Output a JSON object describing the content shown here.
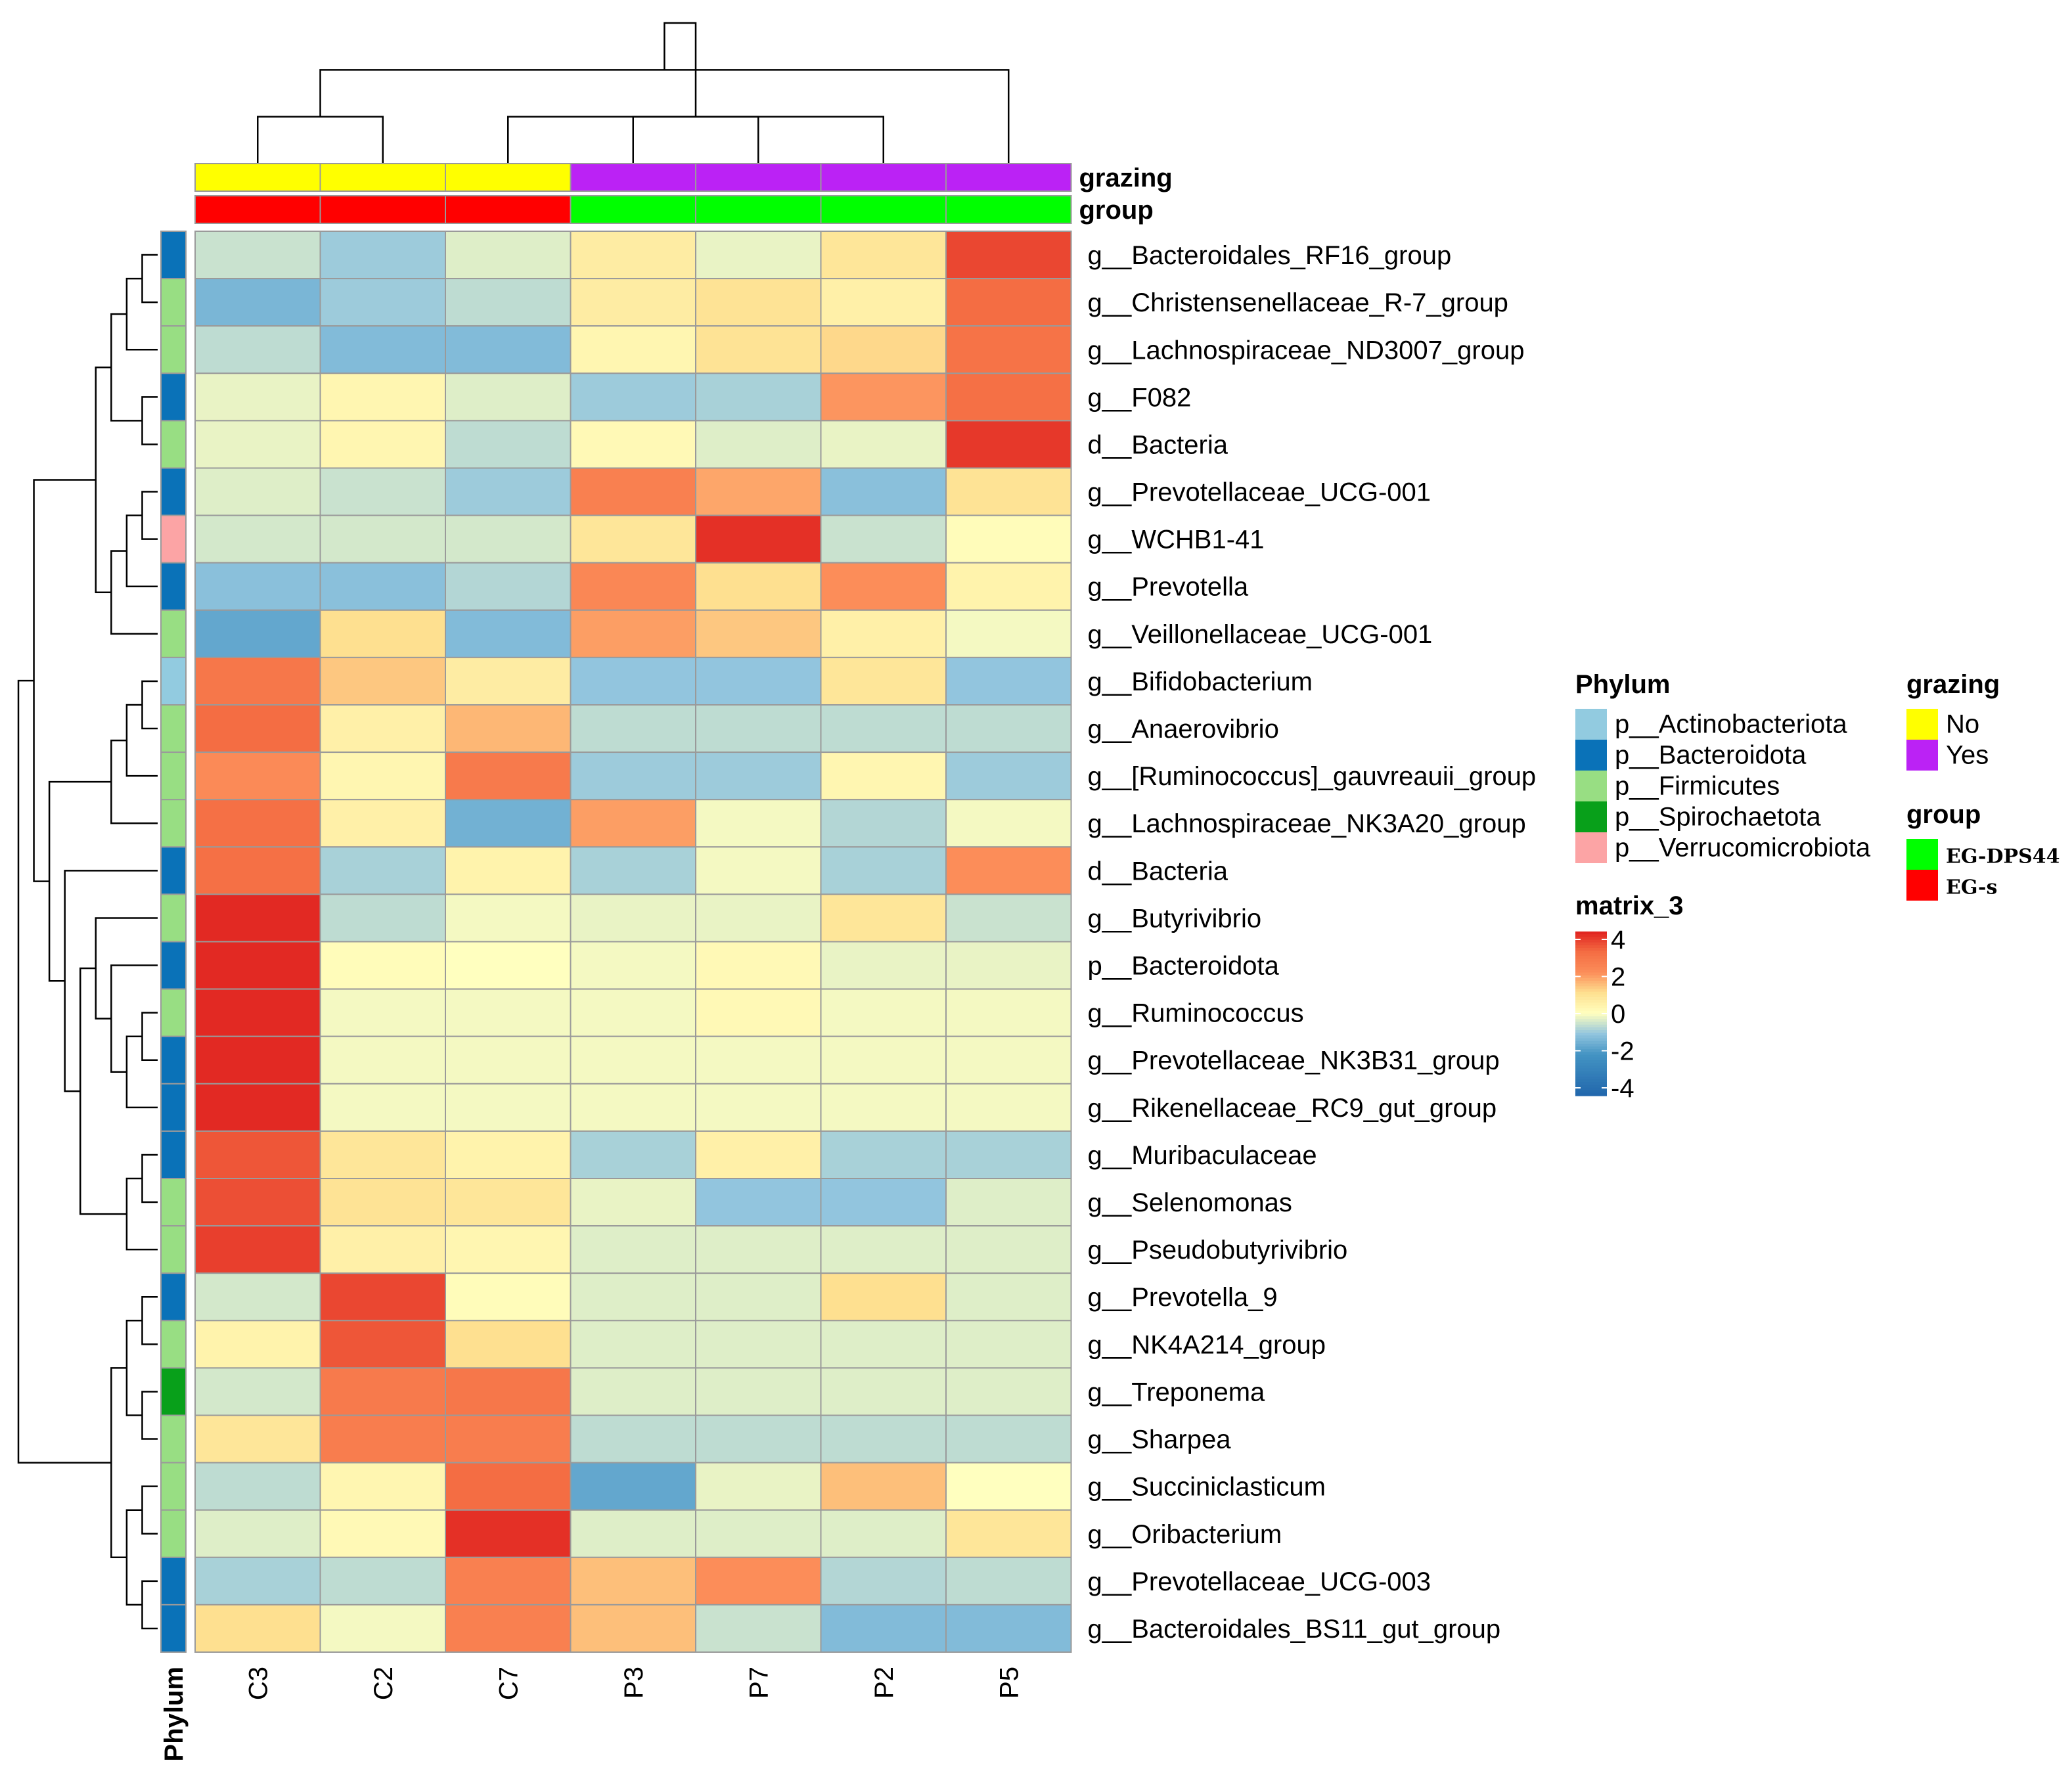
{
  "chart_data": {
    "type": "heatmap",
    "columns": [
      "C3",
      "C2",
      "C7",
      "P3",
      "P7",
      "P2",
      "P5"
    ],
    "rows": [
      "g__Bacteroidales_RF16_group",
      "g__Christensenellaceae_R-7_group",
      "g__Lachnospiraceae_ND3007_group",
      "g__F082",
      "d__Bacteria",
      "g__Prevotellaceae_UCG-001",
      "g__WCHB1-41",
      "g__Prevotella",
      "g__Veillonellaceae_UCG-001",
      "g__Bifidobacterium",
      "g__Anaerovibrio",
      "g__[Ruminococcus]_gauvreauii_group",
      "g__Lachnospiraceae_NK3A20_group",
      "d__Bacteria",
      "g__Butyrivibrio",
      "p__Bacteroidota",
      "g__Ruminococcus",
      "g__Prevotellaceae_NK3B31_group",
      "g__Rikenellaceae_RC9_gut_group",
      "g__Muribaculaceae",
      "g__Selenomonas",
      "g__Pseudobutyrivibrio",
      "g__Prevotella_9",
      "g__NK4A214_group",
      "g__Treponema",
      "g__Sharpea",
      "g__Succiniclasticum",
      "g__Oribacterium",
      "g__Prevotellaceae_UCG-003",
      "g__Bacteroidales_BS11_gut_group"
    ],
    "values": [
      [
        -0.5,
        -0.9,
        -0.3,
        0.6,
        -0.2,
        0.8,
        3.5
      ],
      [
        -1.3,
        -0.9,
        -0.6,
        0.6,
        0.9,
        0.5,
        3.0
      ],
      [
        -0.6,
        -1.2,
        -1.2,
        0.3,
        0.9,
        1.1,
        2.8
      ],
      [
        -0.2,
        0.3,
        -0.3,
        -0.9,
        -0.8,
        1.9,
        2.9
      ],
      [
        -0.2,
        0.3,
        -0.6,
        0.2,
        -0.3,
        -0.2,
        3.7
      ],
      [
        -0.3,
        -0.5,
        -0.9,
        2.4,
        1.7,
        -1.1,
        0.9
      ],
      [
        -0.4,
        -0.4,
        -0.4,
        0.8,
        3.8,
        -0.5,
        0.1
      ],
      [
        -1.1,
        -1.1,
        -0.7,
        2.2,
        1.0,
        2.0,
        0.4
      ],
      [
        -1.6,
        1.0,
        -1.2,
        1.8,
        1.3,
        0.5,
        -0.1
      ],
      [
        2.7,
        1.3,
        0.6,
        -1.0,
        -1.0,
        0.8,
        -1.0
      ],
      [
        3.0,
        0.5,
        1.5,
        -0.6,
        -0.6,
        -0.6,
        -0.6
      ],
      [
        2.1,
        0.3,
        2.6,
        -0.9,
        -0.9,
        0.3,
        -0.9
      ],
      [
        2.9,
        0.5,
        -1.4,
        1.8,
        -0.1,
        -0.7,
        -0.1
      ],
      [
        2.9,
        -0.8,
        0.4,
        -0.8,
        -0.1,
        -0.8,
        2.0
      ],
      [
        3.9,
        -0.6,
        -0.1,
        -0.2,
        -0.2,
        0.8,
        -0.5
      ],
      [
        3.9,
        0.1,
        0.0,
        -0.1,
        0.2,
        -0.2,
        -0.2
      ],
      [
        3.9,
        -0.1,
        -0.1,
        -0.1,
        0.2,
        -0.1,
        -0.1
      ],
      [
        3.9,
        -0.1,
        -0.1,
        -0.1,
        -0.1,
        -0.1,
        -0.1
      ],
      [
        3.9,
        -0.1,
        -0.1,
        -0.1,
        -0.1,
        -0.1,
        -0.1
      ],
      [
        3.3,
        0.8,
        0.4,
        -0.8,
        0.5,
        -0.8,
        -0.8
      ],
      [
        3.4,
        0.9,
        0.8,
        -0.2,
        -1.0,
        -1.0,
        -0.3
      ],
      [
        3.6,
        0.5,
        0.3,
        -0.3,
        -0.3,
        -0.3,
        -0.3
      ],
      [
        -0.4,
        3.5,
        0.1,
        -0.3,
        -0.3,
        1.0,
        -0.3
      ],
      [
        0.4,
        3.3,
        1.0,
        -0.3,
        -0.3,
        -0.3,
        -0.3
      ],
      [
        -0.4,
        2.6,
        2.7,
        -0.3,
        -0.3,
        -0.3,
        -0.3
      ],
      [
        0.8,
        2.5,
        2.5,
        -0.6,
        -0.6,
        -0.6,
        -0.6
      ],
      [
        -0.6,
        0.3,
        3.0,
        -1.6,
        -0.2,
        1.4,
        0.0
      ],
      [
        -0.3,
        0.2,
        3.8,
        -0.3,
        -0.3,
        -0.3,
        0.8
      ],
      [
        -0.8,
        -0.6,
        2.4,
        1.4,
        2.0,
        -0.7,
        -0.6
      ],
      [
        1.0,
        -0.1,
        2.4,
        1.4,
        -0.5,
        -1.2,
        -1.2
      ]
    ],
    "row_phylum": [
      "p__Bacteroidota",
      "p__Firmicutes",
      "p__Firmicutes",
      "p__Bacteroidota",
      "p__Firmicutes",
      "p__Bacteroidota",
      "p__Verrucomicrobiota",
      "p__Bacteroidota",
      "p__Firmicutes",
      "p__Actinobacteriota",
      "p__Firmicutes",
      "p__Firmicutes",
      "p__Firmicutes",
      "p__Bacteroidota",
      "p__Firmicutes",
      "p__Bacteroidota",
      "p__Firmicutes",
      "p__Bacteroidota",
      "p__Bacteroidota",
      "p__Bacteroidota",
      "p__Firmicutes",
      "p__Firmicutes",
      "p__Bacteroidota",
      "p__Firmicutes",
      "p__Spirochaetota",
      "p__Firmicutes",
      "p__Firmicutes",
      "p__Firmicutes",
      "p__Bacteroidota",
      "p__Bacteroidota"
    ],
    "col_grazing": [
      "No",
      "No",
      "No",
      "Yes",
      "Yes",
      "Yes",
      "Yes"
    ],
    "col_group": [
      "EG-s",
      "EG-s",
      "EG-s",
      "EG-DPS44",
      "EG-DPS44",
      "EG-DPS44",
      "EG-DPS44"
    ],
    "row_annotation_label": "Phylum",
    "col_annotation_labels": [
      "grazing",
      "group"
    ],
    "color_scale": {
      "title": "matrix_3",
      "ticks": [
        4,
        2,
        0,
        -2,
        -4
      ],
      "range": [
        -4,
        4
      ],
      "stops": [
        {
          "value": -4,
          "color": "#2166ac"
        },
        {
          "value": -2,
          "color": "#4393c3"
        },
        {
          "value": -1,
          "color": "#92c5de"
        },
        {
          "value": 0,
          "color": "#ffffbf"
        },
        {
          "value": 1,
          "color": "#fee090"
        },
        {
          "value": 2,
          "color": "#fc8d59"
        },
        {
          "value": 3,
          "color": "#f46d43"
        },
        {
          "value": 4,
          "color": "#e0211f"
        }
      ]
    },
    "legends": {
      "phylum": {
        "title": "Phylum",
        "items": [
          {
            "label": "p__Actinobacteriota",
            "color": "#92cbe0"
          },
          {
            "label": "p__Bacteroidota",
            "color": "#0a72b8"
          },
          {
            "label": "p__Firmicutes",
            "color": "#98de83"
          },
          {
            "label": "p__Spirochaetota",
            "color": "#08a01a"
          },
          {
            "label": "p__Verrucomicrobiota",
            "color": "#fca4a5"
          }
        ]
      },
      "grazing": {
        "title": "grazing",
        "items": [
          {
            "label": "No",
            "color": "#ffff00"
          },
          {
            "label": "Yes",
            "color": "#bb22f5"
          }
        ]
      },
      "group": {
        "title": "group",
        "items": [
          {
            "label": "EG-DPS44",
            "color": "#00ff00"
          },
          {
            "label": "EG-s",
            "color": "#ff0000"
          }
        ]
      }
    },
    "column_dendrogram": [
      [
        0,
        1
      ],
      [
        5,
        2
      ],
      [
        3,
        4
      ],
      [
        7,
        6
      ],
      [
        8,
        9
      ],
      [
        10,
        11
      ]
    ],
    "row_dendrogram": [
      [
        0,
        1
      ],
      [
        30,
        2
      ],
      [
        3,
        4
      ],
      [
        31,
        32
      ],
      [
        5,
        6
      ],
      [
        34,
        7
      ],
      [
        35,
        8
      ],
      [
        33,
        36
      ],
      [
        9,
        10
      ],
      [
        38,
        11
      ],
      [
        39,
        12
      ],
      [
        16,
        17
      ],
      [
        41,
        18
      ],
      [
        42,
        15
      ],
      [
        43,
        14
      ],
      [
        19,
        20
      ],
      [
        45,
        21
      ],
      [
        44,
        46
      ],
      [
        47,
        13
      ],
      [
        40,
        48
      ],
      [
        37,
        49
      ],
      [
        22,
        23
      ],
      [
        24,
        25
      ],
      [
        51,
        52
      ],
      [
        26,
        27
      ],
      [
        28,
        29
      ],
      [
        54,
        55
      ],
      [
        53,
        56
      ],
      [
        50,
        57
      ]
    ]
  }
}
